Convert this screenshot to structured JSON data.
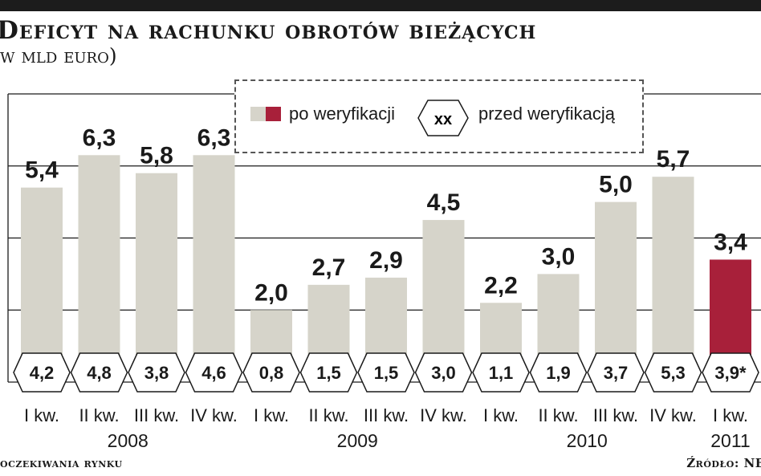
{
  "header": {
    "title": "Deficyt na rachunku obrotów bieżących",
    "subtitle": "w mld euro)"
  },
  "legend": {
    "after_label": "po weryfikacji",
    "before_label": "przed weryfikacją",
    "before_symbol": "xx"
  },
  "footer": {
    "note": "oczekiwania rynku",
    "source": "Źródło: NB"
  },
  "colors": {
    "bar": "#d6d4ca",
    "highlight": "#a8203a",
    "grid": "#1a1a1a"
  },
  "chart_data": {
    "type": "bar",
    "categories": [
      "I kw.",
      "II kw.",
      "III kw.",
      "IV kw.",
      "I kw.",
      "II kw.",
      "III kw.",
      "IV kw.",
      "I kw.",
      "II kw.",
      "III kw.",
      "IV kw.",
      "I kw."
    ],
    "year_groups": [
      {
        "label": "2008",
        "start": 0,
        "end": 3
      },
      {
        "label": "2009",
        "start": 4,
        "end": 7
      },
      {
        "label": "2010",
        "start": 8,
        "end": 11
      },
      {
        "label": "2011",
        "start": 12,
        "end": 12
      }
    ],
    "series": [
      {
        "name": "po weryfikacji",
        "values": [
          5.4,
          6.3,
          5.8,
          6.3,
          2.0,
          2.7,
          2.9,
          4.5,
          2.2,
          3.0,
          5.0,
          5.7,
          3.4
        ],
        "labels": [
          "5,4",
          "6,3",
          "5,8",
          "6,3",
          "2,0",
          "2,7",
          "2,9",
          "4,5",
          "2,2",
          "3,0",
          "5,0",
          "5,7",
          "3,4"
        ],
        "highlight_index": 12
      },
      {
        "name": "przed weryfikacją",
        "values": [
          4.2,
          4.8,
          3.8,
          4.6,
          0.8,
          1.5,
          1.5,
          3.0,
          1.1,
          1.9,
          3.7,
          5.3,
          3.9
        ],
        "labels": [
          "4,2",
          "4,8",
          "3,8",
          "4,6",
          "0,8",
          "1,5",
          "1,5",
          "3,0",
          "1,1",
          "1,9",
          "3,7",
          "5,3",
          "3,9*"
        ]
      }
    ],
    "ylim": [
      0,
      8
    ],
    "yticks": [
      0,
      2,
      4,
      6,
      8
    ],
    "grid": true
  }
}
